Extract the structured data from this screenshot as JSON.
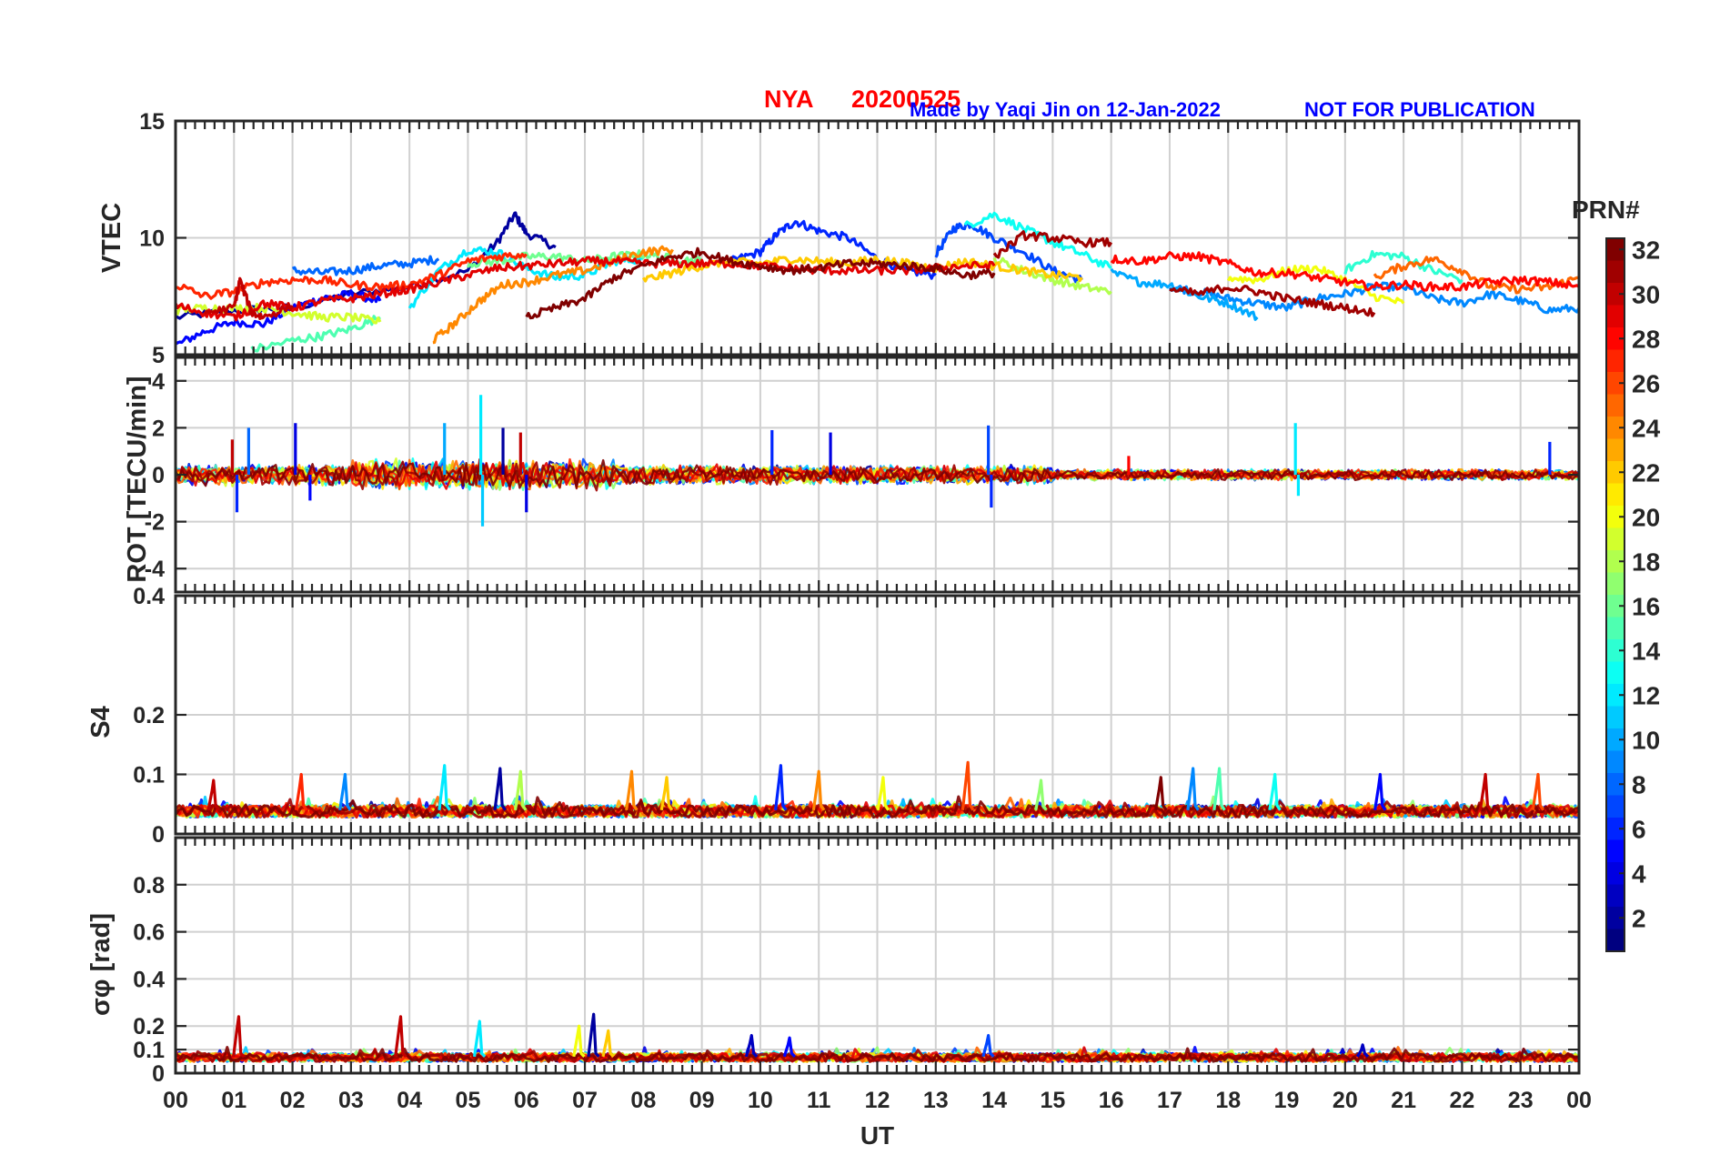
{
  "header": {
    "station": "NYA",
    "date": "20200525",
    "credit": "Made by Yaqi Jin on 12-Jan-2022",
    "notice": "NOT FOR PUBLICATION"
  },
  "colorbar": {
    "label": "PRN#",
    "min": 1,
    "max": 32,
    "ticks": [
      "2",
      "4",
      "6",
      "8",
      "10",
      "12",
      "14",
      "16",
      "18",
      "20",
      "22",
      "24",
      "26",
      "28",
      "30",
      "32"
    ]
  },
  "x_axis": {
    "label": "UT",
    "ticks": [
      "00",
      "01",
      "02",
      "03",
      "04",
      "05",
      "06",
      "07",
      "08",
      "09",
      "10",
      "11",
      "12",
      "13",
      "14",
      "15",
      "16",
      "17",
      "18",
      "19",
      "20",
      "21",
      "22",
      "23",
      "00"
    ]
  },
  "chart_data": [
    {
      "type": "line",
      "ylabel": "VTEC",
      "xlim": [
        0,
        24
      ],
      "ylim": [
        5,
        15
      ],
      "yticks": [
        "5",
        "10",
        "15"
      ],
      "grid": true,
      "series": [
        {
          "prn": 2,
          "x": [
            0,
            1,
            2,
            3,
            4,
            5,
            5.5,
            5.8,
            6,
            6.5
          ],
          "values": [
            6.6,
            6.9,
            7.0,
            7.6,
            7.9,
            8.6,
            9.8,
            11.0,
            10.2,
            9.6
          ]
        },
        {
          "prn": 5,
          "x": [
            0,
            0.5,
            1,
            1.5,
            2,
            2.5,
            3,
            3.5
          ],
          "values": [
            5.4,
            6.0,
            6.4,
            6.3,
            7.0,
            7.4,
            7.6,
            7.3
          ]
        },
        {
          "prn": 6,
          "x": [
            9.5,
            10,
            10.3,
            10.6,
            11,
            11.5,
            12,
            12.5,
            13
          ],
          "values": [
            9.0,
            9.4,
            10.2,
            10.7,
            10.3,
            10.0,
            9.1,
            8.6,
            8.4
          ]
        },
        {
          "prn": 7,
          "x": [
            13,
            13.3,
            13.6,
            14,
            14.5,
            15,
            15.5
          ],
          "values": [
            9.3,
            10.4,
            10.6,
            10.0,
            9.4,
            8.6,
            8.2
          ]
        },
        {
          "prn": 8,
          "x": [
            2,
            2.5,
            3,
            3.5,
            4,
            4.5
          ],
          "values": [
            8.6,
            8.5,
            8.6,
            8.8,
            8.9,
            9.1
          ]
        },
        {
          "prn": 9,
          "x": [
            17,
            17.5,
            18,
            18.5,
            19,
            19.5,
            20,
            20.5,
            21,
            21.5,
            22,
            22.5,
            23,
            23.5,
            24
          ],
          "values": [
            7.9,
            7.7,
            7.4,
            7.2,
            7.0,
            7.4,
            7.6,
            7.9,
            7.9,
            7.4,
            7.2,
            7.6,
            7.3,
            6.9,
            7.0
          ]
        },
        {
          "prn": 10,
          "x": [
            16,
            16.5,
            17,
            17.5,
            18,
            18.5
          ],
          "values": [
            8.5,
            8.1,
            8.0,
            7.5,
            7.2,
            6.6
          ]
        },
        {
          "prn": 12,
          "x": [
            4,
            4.5,
            5,
            5.5,
            6,
            6.5,
            7,
            7.5,
            8
          ],
          "values": [
            7.0,
            8.6,
            9.5,
            9.4,
            8.7,
            8.3,
            8.4,
            9.0,
            9.1
          ]
        },
        {
          "prn": 13,
          "x": [
            13.5,
            14,
            14.5,
            15,
            15.5,
            16
          ],
          "values": [
            10.5,
            11.0,
            10.4,
            9.8,
            9.3,
            8.7
          ]
        },
        {
          "prn": 14,
          "x": [
            20,
            20.5,
            21,
            21.5,
            22
          ],
          "values": [
            8.6,
            9.3,
            9.2,
            8.6,
            8.2
          ]
        },
        {
          "prn": 15,
          "x": [
            1.3,
            2,
            2.5,
            3,
            3.5
          ],
          "values": [
            5.2,
            5.6,
            5.8,
            6.1,
            6.6
          ]
        },
        {
          "prn": 16,
          "x": [
            5,
            5.5,
            6,
            6.5,
            7,
            7.5,
            8,
            8.5,
            9
          ],
          "values": [
            8.9,
            9.0,
            9.2,
            9.2,
            9.0,
            9.2,
            9.3,
            9.1,
            9.0
          ]
        },
        {
          "prn": 18,
          "x": [
            14,
            14.5,
            15,
            15.5,
            16
          ],
          "values": [
            9.1,
            8.6,
            8.2,
            7.9,
            7.7
          ]
        },
        {
          "prn": 19,
          "x": [
            0,
            0.5,
            1,
            1.5,
            2,
            2.5,
            3,
            3.5
          ],
          "values": [
            6.9,
            7.0,
            7.0,
            7.0,
            6.8,
            6.6,
            6.6,
            6.4
          ]
        },
        {
          "prn": 20,
          "x": [
            18,
            18.5,
            19,
            19.5,
            20,
            20.5,
            21
          ],
          "values": [
            8.3,
            8.2,
            8.6,
            8.7,
            8.2,
            7.5,
            7.2
          ]
        },
        {
          "prn": 22,
          "x": [
            8,
            8.5,
            9,
            9.5,
            10,
            10.5,
            11,
            11.5,
            12,
            12.5,
            13,
            13.5,
            14,
            14.5,
            15,
            15.5
          ],
          "values": [
            8.2,
            8.5,
            8.8,
            9.0,
            8.9,
            9.1,
            9.0,
            8.9,
            9.1,
            8.9,
            8.7,
            9.0,
            8.8,
            8.6,
            8.4,
            8.3
          ]
        },
        {
          "prn": 24,
          "x": [
            4.4,
            4.8,
            5.2,
            5.6,
            6,
            6.5,
            7,
            7.5,
            8,
            8.5
          ],
          "values": [
            5.6,
            6.4,
            7.3,
            8.0,
            8.1,
            8.4,
            8.6,
            9.0,
            9.4,
            9.5
          ]
        },
        {
          "prn": 25,
          "x": [
            20.5,
            21,
            21.5,
            22,
            22.5,
            23,
            23.5,
            24
          ],
          "values": [
            8.3,
            8.8,
            9.1,
            8.6,
            7.9,
            7.8,
            7.9,
            8.3
          ]
        },
        {
          "prn": 27,
          "x": [
            0,
            0.5,
            1,
            1.5,
            2,
            2.5,
            3,
            3.5,
            4,
            4.5,
            5,
            5.5,
            6
          ],
          "values": [
            8.0,
            7.5,
            7.7,
            8.1,
            8.2,
            8.2,
            8.0,
            7.9,
            8.0,
            8.4,
            9.0,
            9.2,
            9.3
          ]
        },
        {
          "prn": 28,
          "x": [
            16,
            16.5,
            17,
            17.5,
            18,
            18.5,
            19,
            19.5,
            20,
            20.5,
            21,
            21.5,
            22,
            22.5,
            23,
            23.5,
            24
          ],
          "values": [
            9.1,
            9.0,
            9.2,
            9.2,
            8.9,
            8.5,
            8.5,
            8.3,
            8.1,
            7.9,
            8.0,
            7.9,
            7.9,
            8.1,
            8.2,
            8.1,
            7.9
          ]
        },
        {
          "prn": 29,
          "x": [
            0,
            0.5,
            1,
            1.5,
            2,
            2.5,
            3,
            3.5,
            4,
            4.5,
            5,
            5.5,
            6,
            6.5,
            7,
            7.5,
            8,
            8.5,
            9,
            9.5,
            10,
            10.5,
            11,
            11.5,
            12,
            12.5,
            13,
            13.5,
            14
          ],
          "values": [
            7.1,
            6.8,
            6.6,
            7.2,
            7.0,
            7.3,
            7.4,
            7.6,
            7.8,
            8.1,
            8.4,
            8.7,
            8.8,
            8.9,
            9.0,
            9.0,
            8.9,
            8.9,
            8.9,
            8.9,
            8.8,
            8.7,
            8.6,
            8.6,
            8.6,
            8.6,
            8.7,
            8.8,
            8.8
          ]
        },
        {
          "prn": 30,
          "x": [
            0.5,
            1,
            1.1,
            1.3,
            1.5,
            2
          ],
          "values": [
            6.8,
            7.0,
            8.2,
            6.8,
            6.6,
            7.1
          ]
        },
        {
          "prn": 31,
          "x": [
            14,
            14.5,
            15,
            15.5,
            16
          ],
          "values": [
            9.2,
            10.1,
            10.0,
            9.8,
            9.8
          ]
        },
        {
          "prn": 32,
          "x": [
            6,
            6.5,
            7,
            7.5,
            8,
            8.5,
            9,
            9.5,
            10,
            10.5,
            11,
            11.5,
            12,
            12.5,
            13,
            13.5,
            14
          ],
          "values": [
            6.6,
            7.0,
            7.4,
            8.3,
            8.8,
            9.2,
            9.4,
            9.0,
            8.8,
            8.6,
            8.7,
            8.9,
            8.9,
            8.8,
            8.7,
            8.4,
            8.5
          ]
        },
        {
          "prn": 31,
          "x": [
            17,
            17.5,
            18,
            18.5,
            19,
            19.5,
            20,
            20.5
          ],
          "values": [
            7.8,
            7.6,
            7.9,
            7.7,
            7.4,
            7.2,
            7.0,
            6.8
          ]
        }
      ]
    },
    {
      "type": "line",
      "ylabel": "ROT [TECU/min]",
      "xlim": [
        0,
        24
      ],
      "ylim": [
        -5,
        5
      ],
      "yticks": [
        "-4",
        "-2",
        "0",
        "2",
        "4"
      ],
      "grid": true,
      "spikes": [
        {
          "x": 0.97,
          "value": 1.5,
          "prn": 30
        },
        {
          "x": 1.05,
          "value": -1.6,
          "prn": 6
        },
        {
          "x": 1.25,
          "value": 2.0,
          "prn": 8
        },
        {
          "x": 2.05,
          "value": 2.2,
          "prn": 4
        },
        {
          "x": 2.3,
          "value": -1.1,
          "prn": 5
        },
        {
          "x": 4.6,
          "value": 2.2,
          "prn": 10
        },
        {
          "x": 5.22,
          "value": 3.4,
          "prn": 12
        },
        {
          "x": 5.25,
          "value": -2.2,
          "prn": 11
        },
        {
          "x": 5.6,
          "value": 2.0,
          "prn": 2
        },
        {
          "x": 6.0,
          "value": -1.6,
          "prn": 4
        },
        {
          "x": 5.9,
          "value": 1.8,
          "prn": 30
        },
        {
          "x": 10.2,
          "value": 1.9,
          "prn": 6
        },
        {
          "x": 11.2,
          "value": 1.8,
          "prn": 4
        },
        {
          "x": 13.9,
          "value": 2.1,
          "prn": 7
        },
        {
          "x": 13.95,
          "value": -1.4,
          "prn": 6
        },
        {
          "x": 16.3,
          "value": 0.8,
          "prn": 28
        },
        {
          "x": 19.15,
          "value": 2.2,
          "prn": 12
        },
        {
          "x": 19.2,
          "value": -0.9,
          "prn": 12
        },
        {
          "x": 23.5,
          "value": 1.4,
          "prn": 6
        }
      ],
      "noise_envelope": [
        {
          "x": [
            0,
            3
          ],
          "amplitude": 0.5
        },
        {
          "x": [
            3,
            7.5
          ],
          "amplitude": 0.7
        },
        {
          "x": [
            7.5,
            12
          ],
          "amplitude": 0.45
        },
        {
          "x": [
            12,
            15
          ],
          "amplitude": 0.45
        },
        {
          "x": [
            15,
            24
          ],
          "amplitude": 0.25
        }
      ]
    },
    {
      "type": "line",
      "ylabel": "S4",
      "xlim": [
        0,
        24
      ],
      "ylim": [
        0,
        0.4
      ],
      "yticks": [
        "0",
        "0.1",
        "0.2",
        "0.4"
      ],
      "grid": true,
      "baseline": 0.04,
      "spikes": [
        {
          "x": 0.65,
          "value": 0.09,
          "prn": 30
        },
        {
          "x": 2.15,
          "value": 0.1,
          "prn": 27
        },
        {
          "x": 2.9,
          "value": 0.1,
          "prn": 9
        },
        {
          "x": 4.6,
          "value": 0.115,
          "prn": 12
        },
        {
          "x": 5.55,
          "value": 0.11,
          "prn": 2
        },
        {
          "x": 5.9,
          "value": 0.105,
          "prn": 18
        },
        {
          "x": 7.8,
          "value": 0.105,
          "prn": 24
        },
        {
          "x": 8.4,
          "value": 0.095,
          "prn": 22
        },
        {
          "x": 10.35,
          "value": 0.115,
          "prn": 6
        },
        {
          "x": 11.0,
          "value": 0.105,
          "prn": 24
        },
        {
          "x": 12.1,
          "value": 0.095,
          "prn": 20
        },
        {
          "x": 13.55,
          "value": 0.12,
          "prn": 26
        },
        {
          "x": 14.8,
          "value": 0.09,
          "prn": 17
        },
        {
          "x": 16.85,
          "value": 0.095,
          "prn": 32
        },
        {
          "x": 17.4,
          "value": 0.11,
          "prn": 9
        },
        {
          "x": 17.85,
          "value": 0.11,
          "prn": 15
        },
        {
          "x": 18.8,
          "value": 0.1,
          "prn": 13
        },
        {
          "x": 20.6,
          "value": 0.1,
          "prn": 5
        },
        {
          "x": 22.4,
          "value": 0.1,
          "prn": 30
        },
        {
          "x": 23.3,
          "value": 0.1,
          "prn": 26
        }
      ]
    },
    {
      "type": "line",
      "ylabel": "σφ [rad]",
      "xlim": [
        0,
        24
      ],
      "ylim": [
        0,
        1
      ],
      "yticks": [
        "0",
        "0.1",
        "0.2",
        "0.4",
        "0.6",
        "0.8"
      ],
      "grid": true,
      "baseline": 0.07,
      "spikes": [
        {
          "x": 1.08,
          "value": 0.24,
          "prn": 30
        },
        {
          "x": 3.85,
          "value": 0.24,
          "prn": 30
        },
        {
          "x": 5.2,
          "value": 0.22,
          "prn": 12
        },
        {
          "x": 6.9,
          "value": 0.2,
          "prn": 20
        },
        {
          "x": 7.15,
          "value": 0.25,
          "prn": 2
        },
        {
          "x": 7.4,
          "value": 0.18,
          "prn": 22
        },
        {
          "x": 9.85,
          "value": 0.16,
          "prn": 3
        },
        {
          "x": 10.5,
          "value": 0.15,
          "prn": 5
        },
        {
          "x": 13.9,
          "value": 0.16,
          "prn": 7
        },
        {
          "x": 20.3,
          "value": 0.12,
          "prn": 3
        }
      ]
    }
  ]
}
